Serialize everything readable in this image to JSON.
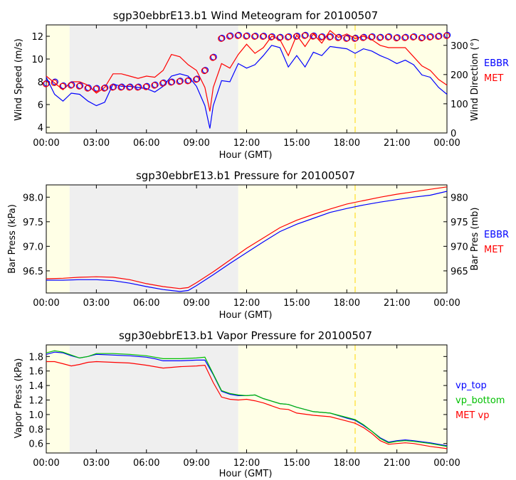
{
  "colors": {
    "night": "#efefef",
    "day": "#ffffe6",
    "ebbr": "#0000ff",
    "met": "#ff0000",
    "vp_top": "#0000ff",
    "vp_bottom": "#00c000",
    "marker": "#ffd700"
  },
  "x_axis": {
    "ticks": [
      "00:00",
      "03:00",
      "06:00",
      "09:00",
      "12:00",
      "15:00",
      "18:00",
      "21:00",
      "00:00"
    ],
    "label": "Hour (GMT)"
  },
  "chart_data": [
    {
      "type": "line",
      "title": "sgp30ebbrE13.b1 Wind Meteogram for 20100507",
      "xlabel": "Hour (GMT)",
      "ylabel": "Wind Speed (m/s)",
      "y2label": "Wind Direction (°)",
      "xlim": [
        0,
        24
      ],
      "ylim": [
        3.5,
        13
      ],
      "y_ticks": [
        4,
        6,
        8,
        10,
        12
      ],
      "y2lim": [
        0,
        370
      ],
      "y2_ticks": [
        0,
        100,
        200,
        300
      ],
      "shading": {
        "night": [
          1.4,
          11.5
        ],
        "marker_hour": 18.5
      },
      "legend": [
        "EBBR",
        "MET"
      ],
      "series": [
        {
          "name": "EBBR",
          "axis": "left",
          "x": [
            0,
            0.5,
            1,
            1.5,
            2,
            2.5,
            3,
            3.5,
            4,
            4.5,
            5,
            5.5,
            6,
            6.5,
            7,
            7.5,
            8,
            8.5,
            9,
            9.5,
            9.8,
            10,
            10.5,
            11,
            11.5,
            12,
            12.5,
            13,
            13.5,
            14,
            14.5,
            15,
            15.5,
            16,
            16.5,
            17,
            17.5,
            18,
            18.5,
            19,
            19.5,
            20,
            20.5,
            21,
            21.5,
            22,
            22.5,
            23,
            23.5,
            24
          ],
          "values": [
            8.4,
            6.9,
            6.3,
            7.0,
            6.9,
            6.3,
            5.9,
            6.2,
            7.8,
            7.6,
            7.6,
            7.5,
            7.4,
            7.1,
            7.6,
            8.5,
            8.7,
            8.5,
            7.6,
            5.9,
            3.9,
            5.9,
            8.1,
            8.0,
            9.6,
            9.2,
            9.5,
            10.3,
            11.2,
            11.0,
            9.3,
            10.3,
            9.3,
            10.6,
            10.3,
            11.1,
            11.0,
            10.9,
            10.5,
            10.9,
            10.7,
            10.3,
            10.0,
            9.6,
            9.9,
            9.5,
            8.6,
            8.4,
            7.5,
            6.9
          ]
        },
        {
          "name": "MET",
          "axis": "left",
          "x": [
            0,
            0.5,
            1,
            1.5,
            2,
            2.5,
            3,
            3.5,
            4,
            4.5,
            5,
            5.5,
            6,
            6.5,
            7,
            7.5,
            8,
            8.5,
            9,
            9.5,
            9.8,
            10,
            10.5,
            11,
            11.5,
            12,
            12.5,
            13,
            13.5,
            14,
            14.5,
            15,
            15.5,
            16,
            16.5,
            17,
            17.5,
            18,
            18.5,
            19,
            19.5,
            20,
            20.5,
            21,
            21.5,
            22,
            22.5,
            23,
            23.5,
            24
          ],
          "values": [
            8.5,
            7.9,
            7.3,
            8.0,
            8.0,
            7.7,
            7.0,
            7.5,
            8.7,
            8.7,
            8.5,
            8.3,
            8.5,
            8.4,
            9.0,
            10.4,
            10.2,
            9.5,
            9.0,
            7.5,
            5.4,
            7.5,
            9.6,
            9.2,
            10.4,
            11.3,
            10.5,
            11.0,
            12.0,
            11.7,
            10.3,
            12.1,
            11.1,
            12.2,
            11.4,
            12.5,
            11.9,
            12.2,
            11.8,
            12.0,
            11.7,
            11.2,
            11.0,
            11.0,
            11.0,
            10.2,
            9.4,
            9.0,
            8.2,
            7.7
          ]
        },
        {
          "name": "EBBR direction",
          "axis": "right",
          "x": [
            0,
            0.5,
            1,
            1.5,
            2,
            2.5,
            3,
            3.5,
            4,
            4.5,
            5,
            5.5,
            6,
            6.5,
            7,
            7.5,
            8,
            8.5,
            9,
            9.5,
            10,
            10.5,
            11,
            11.5,
            12,
            12.5,
            13,
            13.5,
            14,
            14.5,
            15,
            15.5,
            16,
            16.5,
            17,
            17.5,
            18,
            18.5,
            19,
            19.5,
            20,
            20.5,
            21,
            21.5,
            22,
            22.5,
            23,
            23.5,
            24
          ],
          "values": [
            170,
            175,
            162,
            165,
            162,
            155,
            153,
            155,
            158,
            158,
            158,
            158,
            160,
            165,
            172,
            175,
            178,
            180,
            185,
            215,
            260,
            325,
            333,
            335,
            333,
            332,
            332,
            330,
            328,
            330,
            332,
            335,
            333,
            330,
            330,
            328,
            325,
            325,
            328,
            330,
            328,
            330,
            327,
            328,
            330,
            327,
            330,
            332,
            335
          ]
        },
        {
          "name": "MET direction",
          "axis": "right",
          "x": [
            0,
            0.5,
            1,
            1.5,
            2,
            2.5,
            3,
            3.5,
            4,
            4.5,
            5,
            5.5,
            6,
            6.5,
            7,
            7.5,
            8,
            8.5,
            9,
            9.5,
            10,
            10.5,
            11,
            11.5,
            12,
            12.5,
            13,
            13.5,
            14,
            14.5,
            15,
            15.5,
            16,
            16.5,
            17,
            17.5,
            18,
            18.5,
            19,
            19.5,
            20,
            20.5,
            21,
            21.5,
            22,
            22.5,
            23,
            23.5,
            24
          ],
          "values": [
            168,
            172,
            160,
            163,
            160,
            153,
            151,
            153,
            156,
            156,
            156,
            156,
            158,
            163,
            170,
            173,
            176,
            178,
            183,
            213,
            258,
            323,
            331,
            333,
            331,
            330,
            330,
            328,
            326,
            328,
            330,
            333,
            331,
            328,
            328,
            326,
            323,
            323,
            326,
            328,
            326,
            328,
            325,
            326,
            328,
            325,
            328,
            330,
            333
          ]
        }
      ]
    },
    {
      "type": "line",
      "title": "sgp30ebbrE13.b1 Pressure for 20100507",
      "xlabel": "Hour (GMT)",
      "ylabel": "Bar Press (kPa)",
      "y2label": "Bar Pres (mb)",
      "xlim": [
        0,
        24
      ],
      "ylim": [
        96.05,
        98.25
      ],
      "y_ticks": [
        96.5,
        97.0,
        97.5,
        98.0
      ],
      "y_tick_labels": [
        "96.5",
        "97.0",
        "97.5",
        "98.0"
      ],
      "y2lim": [
        960.5,
        982.5
      ],
      "y2_ticks": [
        965,
        970,
        975,
        980
      ],
      "shading": {
        "night": [
          1.4,
          11.5
        ],
        "marker_hour": 18.5
      },
      "legend": [
        "EBBR",
        "MET"
      ],
      "series": [
        {
          "name": "EBBR",
          "x": [
            0,
            1,
            2,
            3,
            4,
            5,
            6,
            7,
            8,
            8.5,
            9,
            10,
            11,
            12,
            13,
            14,
            15,
            16,
            17,
            18,
            19,
            20,
            21,
            22,
            23,
            24
          ],
          "values": [
            96.31,
            96.31,
            96.32,
            96.32,
            96.3,
            96.25,
            96.18,
            96.12,
            96.08,
            96.1,
            96.2,
            96.42,
            96.65,
            96.87,
            97.09,
            97.3,
            97.45,
            97.57,
            97.69,
            97.77,
            97.84,
            97.9,
            97.95,
            98.0,
            98.04,
            98.12
          ]
        },
        {
          "name": "MET",
          "x": [
            0,
            1,
            2,
            3,
            4,
            5,
            6,
            7,
            8,
            8.5,
            9,
            10,
            11,
            12,
            13,
            14,
            15,
            16,
            17,
            18,
            19,
            20,
            21,
            22,
            23,
            24
          ],
          "values": [
            96.34,
            96.35,
            96.37,
            96.38,
            96.37,
            96.32,
            96.24,
            96.18,
            96.14,
            96.16,
            96.26,
            96.48,
            96.72,
            96.96,
            97.17,
            97.38,
            97.53,
            97.65,
            97.76,
            97.86,
            97.93,
            98.0,
            98.06,
            98.11,
            98.16,
            98.21
          ]
        }
      ]
    },
    {
      "type": "line",
      "title": "sgp30ebbrE13.b1 Vapor Pressure for 20100507",
      "xlabel": "Hour (GMT)",
      "ylabel": "Vapor Press (kPa)",
      "xlim": [
        0,
        24
      ],
      "ylim": [
        0.47,
        1.96
      ],
      "y_ticks": [
        0.6,
        0.8,
        1.0,
        1.2,
        1.4,
        1.6,
        1.8
      ],
      "y_tick_labels": [
        "0.6",
        "0.8",
        "1.0",
        "1.2",
        "1.4",
        "1.6",
        "1.8"
      ],
      "shading": {
        "night": [
          1.4,
          11.5
        ],
        "marker_hour": 18.5
      },
      "legend": [
        "vp_top",
        "vp_bottom",
        "MET vp"
      ],
      "series": [
        {
          "name": "vp_top",
          "x": [
            0,
            0.5,
            1,
            1.5,
            2,
            2.5,
            3,
            4,
            5,
            6,
            6.5,
            7,
            8,
            9,
            9.5,
            10,
            10.5,
            11,
            11.5,
            12,
            12.5,
            13,
            14,
            14.5,
            15,
            16,
            17,
            18,
            18.5,
            19,
            19.5,
            20,
            20.5,
            21,
            21.5,
            22,
            23,
            24
          ],
          "values": [
            1.83,
            1.86,
            1.85,
            1.81,
            1.78,
            1.8,
            1.83,
            1.82,
            1.81,
            1.79,
            1.77,
            1.74,
            1.74,
            1.75,
            1.75,
            1.55,
            1.32,
            1.28,
            1.26,
            1.26,
            1.27,
            1.22,
            1.15,
            1.14,
            1.1,
            1.04,
            1.02,
            0.95,
            0.92,
            0.85,
            0.77,
            0.68,
            0.62,
            0.64,
            0.65,
            0.64,
            0.61,
            0.57
          ]
        },
        {
          "name": "vp_bottom",
          "x": [
            0,
            0.5,
            1,
            1.5,
            2,
            2.5,
            3,
            4,
            5,
            6,
            6.5,
            7,
            8,
            9,
            9.5,
            10,
            10.5,
            11,
            11.5,
            12,
            12.5,
            13,
            14,
            14.5,
            15,
            16,
            17,
            18,
            18.5,
            19,
            19.5,
            20,
            20.5,
            21,
            21.5,
            22,
            23,
            24
          ],
          "values": [
            1.85,
            1.88,
            1.86,
            1.82,
            1.78,
            1.8,
            1.84,
            1.84,
            1.83,
            1.81,
            1.79,
            1.77,
            1.77,
            1.78,
            1.79,
            1.56,
            1.33,
            1.29,
            1.27,
            1.26,
            1.27,
            1.22,
            1.15,
            1.14,
            1.1,
            1.04,
            1.02,
            0.96,
            0.93,
            0.86,
            0.77,
            0.67,
            0.61,
            0.63,
            0.64,
            0.63,
            0.6,
            0.56
          ]
        },
        {
          "name": "MET vp",
          "x": [
            0,
            0.5,
            1,
            1.5,
            2,
            2.5,
            3,
            4,
            5,
            6,
            6.5,
            7,
            8,
            9,
            9.5,
            10,
            10.5,
            11,
            11.5,
            12,
            12.5,
            13,
            14,
            14.5,
            15,
            16,
            17,
            18,
            18.5,
            19,
            19.5,
            20,
            20.5,
            21,
            21.5,
            22,
            23,
            24
          ],
          "values": [
            1.73,
            1.73,
            1.7,
            1.67,
            1.69,
            1.72,
            1.73,
            1.72,
            1.71,
            1.68,
            1.66,
            1.64,
            1.66,
            1.67,
            1.68,
            1.44,
            1.24,
            1.21,
            1.2,
            1.21,
            1.19,
            1.16,
            1.08,
            1.07,
            1.02,
            0.99,
            0.97,
            0.91,
            0.88,
            0.82,
            0.74,
            0.64,
            0.59,
            0.6,
            0.61,
            0.6,
            0.56,
            0.53
          ]
        }
      ]
    }
  ]
}
